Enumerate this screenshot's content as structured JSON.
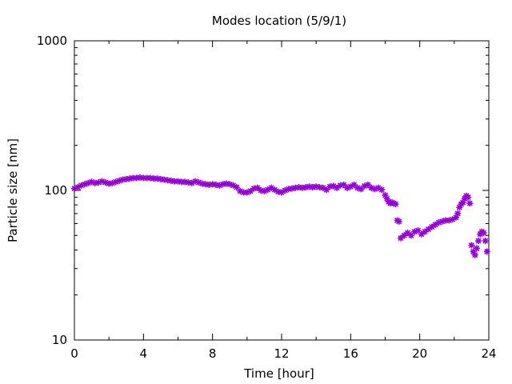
{
  "chart_data": {
    "type": "scatter",
    "title": "Modes location (5/9/1)",
    "xlabel": "Time [hour]",
    "ylabel": "Particle size [nm]",
    "xlim": [
      0,
      24
    ],
    "ylim": [
      10,
      1000
    ],
    "yscale": "log",
    "x_ticks": [
      "0",
      "4",
      "8",
      "12",
      "16",
      "20",
      "24"
    ],
    "y_ticks": [
      "10",
      "100",
      "1000"
    ],
    "grid": false,
    "legend": "none",
    "color": "#9400d3",
    "marker": "star",
    "series": [
      {
        "points": [
          [
            0.0,
            103
          ],
          [
            0.2,
            105
          ],
          [
            0.4,
            108
          ],
          [
            0.6,
            110
          ],
          [
            0.8,
            112
          ],
          [
            1.0,
            114
          ],
          [
            1.2,
            112
          ],
          [
            1.4,
            113
          ],
          [
            1.6,
            115
          ],
          [
            1.8,
            113
          ],
          [
            2.0,
            111
          ],
          [
            2.2,
            112
          ],
          [
            2.4,
            114
          ],
          [
            2.6,
            116
          ],
          [
            2.8,
            118
          ],
          [
            3.0,
            119
          ],
          [
            3.2,
            120
          ],
          [
            3.4,
            121
          ],
          [
            3.6,
            121
          ],
          [
            3.8,
            122
          ],
          [
            4.0,
            121
          ],
          [
            4.2,
            121
          ],
          [
            4.4,
            121
          ],
          [
            4.6,
            120
          ],
          [
            4.8,
            120
          ],
          [
            5.0,
            119
          ],
          [
            5.2,
            118
          ],
          [
            5.4,
            117
          ],
          [
            5.6,
            116
          ],
          [
            5.8,
            115
          ],
          [
            6.0,
            115
          ],
          [
            6.2,
            114
          ],
          [
            6.4,
            114
          ],
          [
            6.6,
            113
          ],
          [
            6.8,
            112
          ],
          [
            7.0,
            115
          ],
          [
            7.2,
            113
          ],
          [
            7.4,
            111
          ],
          [
            7.6,
            110
          ],
          [
            7.8,
            109
          ],
          [
            8.0,
            110
          ],
          [
            8.2,
            109
          ],
          [
            8.4,
            108
          ],
          [
            8.6,
            110
          ],
          [
            8.8,
            111
          ],
          [
            9.0,
            110
          ],
          [
            9.2,
            108
          ],
          [
            9.4,
            105
          ],
          [
            9.6,
            99
          ],
          [
            9.8,
            97
          ],
          [
            10.0,
            97
          ],
          [
            10.2,
            99
          ],
          [
            10.4,
            103
          ],
          [
            10.6,
            104
          ],
          [
            10.8,
            100
          ],
          [
            11.0,
            99
          ],
          [
            11.2,
            101
          ],
          [
            11.4,
            104
          ],
          [
            11.6,
            101
          ],
          [
            11.8,
            98
          ],
          [
            12.0,
            97
          ],
          [
            12.2,
            100
          ],
          [
            12.4,
            102
          ],
          [
            12.6,
            103
          ],
          [
            12.8,
            104
          ],
          [
            13.0,
            105
          ],
          [
            13.2,
            104
          ],
          [
            13.4,
            105
          ],
          [
            13.6,
            106
          ],
          [
            13.8,
            105
          ],
          [
            14.0,
            106
          ],
          [
            14.2,
            105
          ],
          [
            14.4,
            104
          ],
          [
            14.6,
            101
          ],
          [
            14.8,
            106
          ],
          [
            15.0,
            107
          ],
          [
            15.2,
            104
          ],
          [
            15.4,
            108
          ],
          [
            15.6,
            109
          ],
          [
            15.8,
            104
          ],
          [
            16.0,
            106
          ],
          [
            16.2,
            109
          ],
          [
            16.4,
            104
          ],
          [
            16.6,
            102
          ],
          [
            16.8,
            107
          ],
          [
            17.0,
            109
          ],
          [
            17.2,
            104
          ],
          [
            17.4,
            102
          ],
          [
            17.6,
            104
          ],
          [
            17.8,
            101
          ],
          [
            18.0,
            93
          ],
          [
            18.1,
            88
          ],
          [
            18.2,
            84
          ],
          [
            18.3,
            82
          ],
          [
            18.4,
            83
          ],
          [
            18.5,
            82
          ],
          [
            18.6,
            81
          ],
          [
            18.7,
            63
          ],
          [
            18.8,
            62
          ],
          [
            18.9,
            48
          ],
          [
            19.1,
            50
          ],
          [
            19.3,
            52
          ],
          [
            19.5,
            50
          ],
          [
            19.7,
            53
          ],
          [
            19.9,
            54
          ],
          [
            20.1,
            51
          ],
          [
            20.3,
            53
          ],
          [
            20.5,
            55
          ],
          [
            20.7,
            57
          ],
          [
            20.9,
            59
          ],
          [
            21.1,
            61
          ],
          [
            21.3,
            62
          ],
          [
            21.5,
            63
          ],
          [
            21.7,
            63
          ],
          [
            21.9,
            64
          ],
          [
            22.1,
            66
          ],
          [
            22.2,
            70
          ],
          [
            22.3,
            77
          ],
          [
            22.4,
            81
          ],
          [
            22.5,
            83
          ],
          [
            22.6,
            88
          ],
          [
            22.7,
            92
          ],
          [
            22.8,
            90
          ],
          [
            22.9,
            82
          ],
          [
            23.0,
            43
          ],
          [
            23.1,
            39
          ],
          [
            23.2,
            37
          ],
          [
            23.3,
            41
          ],
          [
            23.4,
            46
          ],
          [
            23.5,
            51
          ],
          [
            23.6,
            53
          ],
          [
            23.7,
            52
          ],
          [
            23.8,
            46
          ],
          [
            23.9,
            39
          ]
        ]
      }
    ]
  }
}
